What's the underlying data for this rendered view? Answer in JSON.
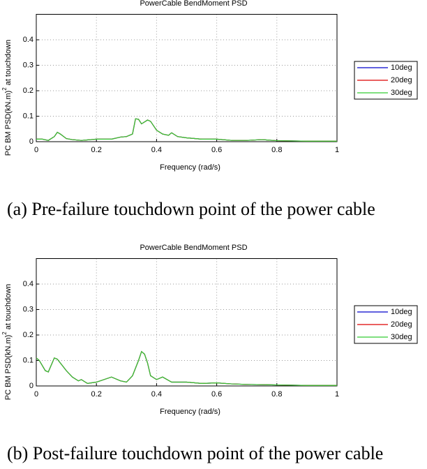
{
  "chart_data": [
    {
      "type": "line",
      "title": "PowerCable BendMoment PSD",
      "y_label_parts": [
        "PC BM PSD(kN.m)",
        "2",
        " at touchdown"
      ],
      "x_label": "Frequency (rad/s)",
      "caption": "(a) Pre-failure touchdown point of the power cable",
      "xlim": [
        0,
        1
      ],
      "ylim": [
        0,
        0.5
      ],
      "xticks": [
        0,
        0.2,
        0.4,
        0.6,
        0.8,
        1
      ],
      "yticks": [
        0,
        0.1,
        0.2,
        0.3,
        0.4
      ],
      "grid": true,
      "legend": "right",
      "x": [
        0,
        0.02,
        0.04,
        0.06,
        0.07,
        0.08,
        0.1,
        0.12,
        0.15,
        0.2,
        0.25,
        0.28,
        0.3,
        0.32,
        0.33,
        0.34,
        0.35,
        0.37,
        0.38,
        0.4,
        0.42,
        0.44,
        0.45,
        0.47,
        0.5,
        0.55,
        0.6,
        0.65,
        0.7,
        0.75,
        0.8,
        0.9,
        1.0
      ],
      "series": [
        {
          "name": "10deg",
          "color": "#0000cc",
          "values": [
            0.01,
            0.01,
            0.005,
            0.02,
            0.037,
            0.03,
            0.012,
            0.008,
            0.005,
            0.01,
            0.01,
            0.018,
            0.02,
            0.03,
            0.09,
            0.088,
            0.07,
            0.085,
            0.08,
            0.045,
            0.03,
            0.025,
            0.035,
            0.02,
            0.015,
            0.01,
            0.01,
            0.005,
            0.005,
            0.008,
            0.004,
            0.002,
            0.002
          ]
        },
        {
          "name": "20deg",
          "color": "#dd0000",
          "values": [
            0.01,
            0.01,
            0.005,
            0.02,
            0.037,
            0.03,
            0.012,
            0.008,
            0.005,
            0.01,
            0.01,
            0.018,
            0.02,
            0.03,
            0.09,
            0.088,
            0.07,
            0.085,
            0.08,
            0.045,
            0.03,
            0.025,
            0.035,
            0.02,
            0.015,
            0.01,
            0.01,
            0.005,
            0.005,
            0.008,
            0.004,
            0.002,
            0.002
          ]
        },
        {
          "name": "30deg",
          "color": "#33cc33",
          "values": [
            0.01,
            0.01,
            0.005,
            0.02,
            0.037,
            0.03,
            0.012,
            0.008,
            0.005,
            0.01,
            0.01,
            0.018,
            0.02,
            0.03,
            0.09,
            0.088,
            0.07,
            0.085,
            0.08,
            0.045,
            0.03,
            0.025,
            0.035,
            0.02,
            0.015,
            0.01,
            0.01,
            0.005,
            0.005,
            0.008,
            0.004,
            0.002,
            0.002
          ]
        }
      ]
    },
    {
      "type": "line",
      "title": "PowerCable BendMoment PSD",
      "y_label_parts": [
        "PC BM PSD(kN.m)",
        "2",
        " at touchdown"
      ],
      "x_label": "Frequency (rad/s)",
      "caption": "(b) Post-failure touchdown point of the power cable",
      "xlim": [
        0,
        1
      ],
      "ylim": [
        0,
        0.5
      ],
      "xticks": [
        0,
        0.2,
        0.4,
        0.6,
        0.8,
        1
      ],
      "yticks": [
        0,
        0.1,
        0.2,
        0.3,
        0.4
      ],
      "grid": true,
      "legend": "right",
      "x": [
        0,
        0.01,
        0.03,
        0.04,
        0.06,
        0.07,
        0.08,
        0.1,
        0.12,
        0.14,
        0.15,
        0.17,
        0.2,
        0.25,
        0.28,
        0.3,
        0.32,
        0.34,
        0.35,
        0.36,
        0.37,
        0.38,
        0.4,
        0.42,
        0.45,
        0.5,
        0.55,
        0.6,
        0.65,
        0.7,
        0.8,
        0.9,
        1.0
      ],
      "series": [
        {
          "name": "10deg",
          "color": "#0000cc",
          "values": [
            0.11,
            0.1,
            0.06,
            0.055,
            0.11,
            0.105,
            0.09,
            0.06,
            0.035,
            0.02,
            0.025,
            0.01,
            0.015,
            0.035,
            0.02,
            0.015,
            0.04,
            0.1,
            0.135,
            0.125,
            0.09,
            0.04,
            0.025,
            0.035,
            0.015,
            0.015,
            0.01,
            0.012,
            0.008,
            0.006,
            0.004,
            0.002,
            0.002
          ]
        },
        {
          "name": "20deg",
          "color": "#dd0000",
          "values": [
            0.11,
            0.1,
            0.06,
            0.055,
            0.11,
            0.105,
            0.09,
            0.06,
            0.035,
            0.02,
            0.025,
            0.01,
            0.015,
            0.035,
            0.02,
            0.015,
            0.04,
            0.1,
            0.135,
            0.125,
            0.09,
            0.04,
            0.025,
            0.035,
            0.015,
            0.015,
            0.01,
            0.012,
            0.008,
            0.006,
            0.004,
            0.002,
            0.002
          ]
        },
        {
          "name": "30deg",
          "color": "#33cc33",
          "values": [
            0.11,
            0.1,
            0.06,
            0.055,
            0.11,
            0.105,
            0.09,
            0.06,
            0.035,
            0.02,
            0.025,
            0.01,
            0.015,
            0.035,
            0.02,
            0.015,
            0.04,
            0.1,
            0.135,
            0.125,
            0.09,
            0.04,
            0.025,
            0.035,
            0.015,
            0.015,
            0.01,
            0.012,
            0.008,
            0.006,
            0.004,
            0.002,
            0.002
          ]
        }
      ]
    }
  ]
}
